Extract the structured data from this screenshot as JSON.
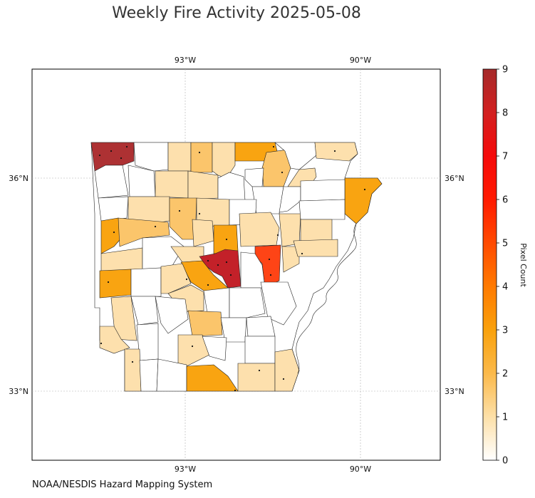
{
  "title": "Weekly Fire Activity 2025-05-08",
  "source": "NOAA/NESDIS Hazard Mapping System",
  "map": {
    "region": "Arkansas counties",
    "lon_labels": [
      "93°W",
      "90°W"
    ],
    "lat_labels": [
      "36°N",
      "33°N"
    ],
    "gridlines": true
  },
  "colorbar": {
    "label": "Pixel Count",
    "ticks": [
      "0",
      "1",
      "2",
      "3",
      "4",
      "5",
      "6",
      "7",
      "8",
      "9"
    ],
    "colors": [
      "#ffffff",
      "#fde0a8",
      "#fbb040",
      "#f99b0c",
      "#ff6a00",
      "#ff3300",
      "#ff0000",
      "#d92020",
      "#b02a2a"
    ],
    "min": 0,
    "max": 9
  },
  "colors": {
    "c0": "#ffffff",
    "c1": "#fde0ad",
    "c2": "#fbc56b",
    "c3": "#f9a411",
    "c5": "#fe4416",
    "c8": "#c32129",
    "c9": "#ad3133"
  }
}
